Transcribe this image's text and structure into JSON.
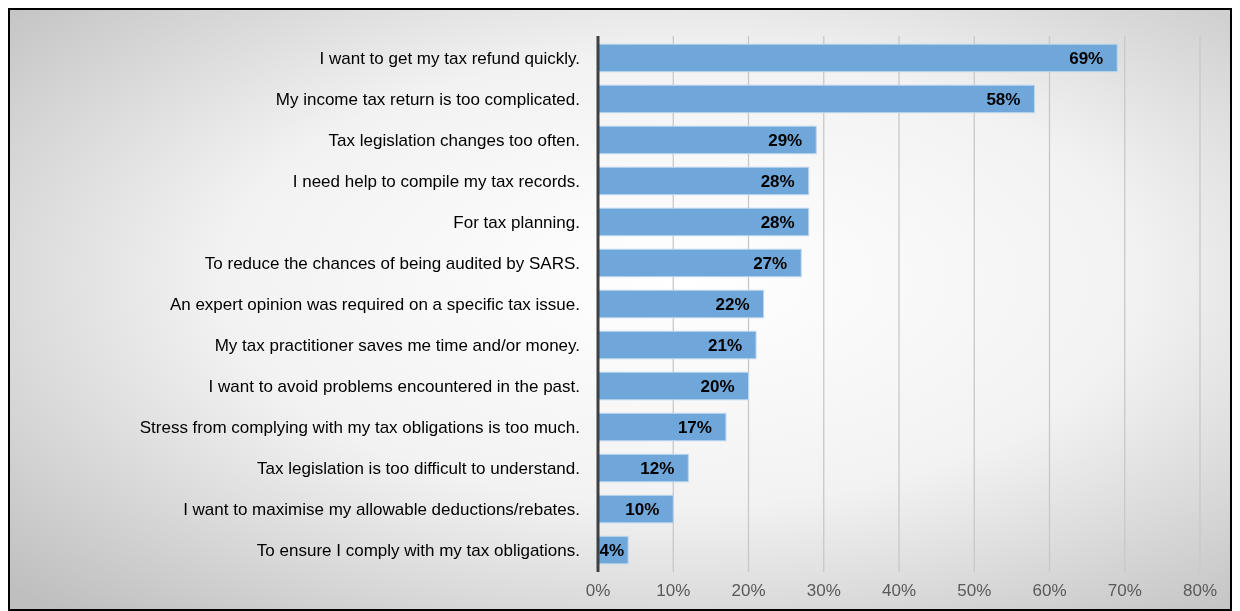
{
  "chart_data": {
    "type": "bar",
    "orientation": "horizontal",
    "categories": [
      "I want to get my tax refund quickly.",
      "My income tax return is too complicated.",
      "Tax legislation changes too often.",
      "I need help to compile my tax records.",
      "For tax planning.",
      "To reduce the chances of being audited by SARS.",
      "An expert opinion was required on a specific tax issue.",
      "My tax practitioner saves me time and/or money.",
      "I want to avoid problems encountered in the past.",
      "Stress from complying with my tax obligations is too much.",
      "Tax legislation is too difficult to understand.",
      "I want to maximise my allowable deductions/rebates.",
      "To ensure I comply with my tax obligations."
    ],
    "values": [
      69,
      58,
      29,
      28,
      28,
      27,
      22,
      21,
      20,
      17,
      12,
      10,
      4
    ],
    "color": "#70a7da",
    "xlim": [
      0,
      80
    ],
    "xticks": [
      {
        "value": 0,
        "label": "0%"
      },
      {
        "value": 10,
        "label": "10%"
      },
      {
        "value": 20,
        "label": "20%"
      },
      {
        "value": 30,
        "label": "30%"
      },
      {
        "value": 40,
        "label": "40%"
      },
      {
        "value": 50,
        "label": "50%"
      },
      {
        "value": 60,
        "label": "60%"
      },
      {
        "value": 70,
        "label": "70%"
      },
      {
        "value": 80,
        "label": "80%"
      }
    ],
    "value_labels": [
      "69%",
      "58%",
      "29%",
      "28%",
      "28%",
      "27%",
      "22%",
      "21%",
      "20%",
      "17%",
      "12%",
      "10%",
      "4%"
    ],
    "grid": "x"
  }
}
